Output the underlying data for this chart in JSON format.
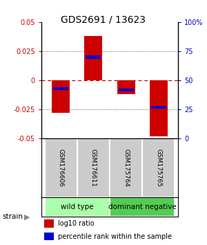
{
  "title": "GDS2691 / 13623",
  "samples": [
    "GSM176606",
    "GSM176611",
    "GSM175764",
    "GSM175765"
  ],
  "log10_ratio": [
    -0.028,
    0.038,
    -0.012,
    -0.048
  ],
  "percentile_rank": [
    0.43,
    0.7,
    0.42,
    0.27
  ],
  "groups": [
    {
      "label": "wild type",
      "samples": [
        0,
        1
      ],
      "color": "#aaffaa"
    },
    {
      "label": "dominant negative",
      "samples": [
        2,
        3
      ],
      "color": "#55cc55"
    }
  ],
  "group_label": "strain",
  "ylim_left": [
    -0.05,
    0.05
  ],
  "ylim_right": [
    0,
    1.0
  ],
  "yticks_left": [
    -0.05,
    -0.025,
    0,
    0.025,
    0.05
  ],
  "ytick_labels_left": [
    "-0.05",
    "-0.025",
    "0",
    "0.025",
    "0.05"
  ],
  "yticks_right": [
    0,
    0.25,
    0.5,
    0.75,
    1.0
  ],
  "ytick_labels_right": [
    "0",
    "25",
    "50",
    "75",
    "100%"
  ],
  "bar_color_red": "#cc0000",
  "bar_color_blue": "#0000cc",
  "bar_width": 0.55,
  "legend_red": "log10 ratio",
  "legend_blue": "percentile rank within the sample",
  "hline_zero_color": "#cc0000",
  "hline_dotted_color": "#555555",
  "background_color": "#ffffff",
  "sample_box_color": "#cccccc",
  "title_fontsize": 10,
  "axis_label_fontsize": 7,
  "sample_fontsize": 6.5,
  "group_fontsize": 7.5,
  "legend_fontsize": 7
}
